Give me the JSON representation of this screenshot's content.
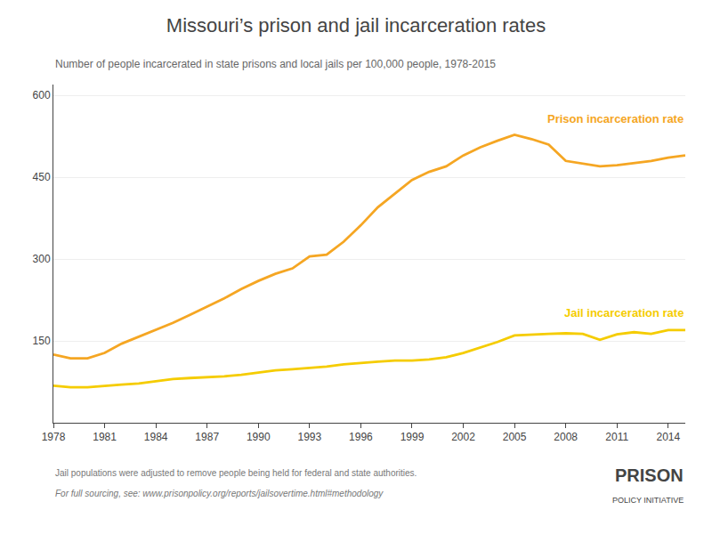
{
  "chart_data": {
    "type": "line",
    "title": "Missouri’s prison and jail incarceration rates",
    "subtitle": "Number of people incarcerated in state prisons and local jails per 100,000 people, 1978-2015",
    "x": [
      1978,
      1979,
      1980,
      1981,
      1982,
      1983,
      1984,
      1985,
      1986,
      1987,
      1988,
      1989,
      1990,
      1991,
      1992,
      1993,
      1994,
      1995,
      1996,
      1997,
      1998,
      1999,
      2000,
      2001,
      2002,
      2003,
      2004,
      2005,
      2006,
      2007,
      2008,
      2009,
      2010,
      2011,
      2012,
      2013,
      2014,
      2015
    ],
    "series": [
      {
        "name": "Prison incarceration rate",
        "color": "#f5a623",
        "values": [
          125,
          118,
          118,
          128,
          145,
          158,
          170,
          183,
          198,
          213,
          228,
          245,
          260,
          273,
          283,
          305,
          308,
          332,
          362,
          395,
          420,
          445,
          460,
          470,
          490,
          505,
          517,
          528,
          520,
          510,
          480,
          475,
          470,
          472,
          476,
          480,
          486,
          490
        ]
      },
      {
        "name": "Jail incarceration rate",
        "color": "#f5cc00",
        "values": [
          68,
          65,
          65,
          68,
          70,
          72,
          76,
          80,
          82,
          83,
          85,
          88,
          92,
          96,
          98,
          100,
          103,
          107,
          110,
          112,
          114,
          114,
          116,
          120,
          128,
          138,
          148,
          160,
          162,
          163,
          164,
          163,
          152,
          162,
          166,
          163,
          170,
          170
        ]
      }
    ],
    "xlim": [
      1978,
      2015
    ],
    "xticks": [
      1978,
      1981,
      1984,
      1987,
      1990,
      1993,
      1996,
      1999,
      2002,
      2005,
      2008,
      2011,
      2014
    ],
    "ylim": [
      0,
      620
    ],
    "yticks": [
      150,
      300,
      450,
      600
    ],
    "grid": true,
    "annotations": [
      "Jail populations were adjusted to remove people being held for federal and state authorities.",
      "For full sourcing, see: www.prisonpolicy.org/reports/jailsovertime.html#methodology",
      "PRISON",
      "POLICY INITIATIVE"
    ]
  }
}
